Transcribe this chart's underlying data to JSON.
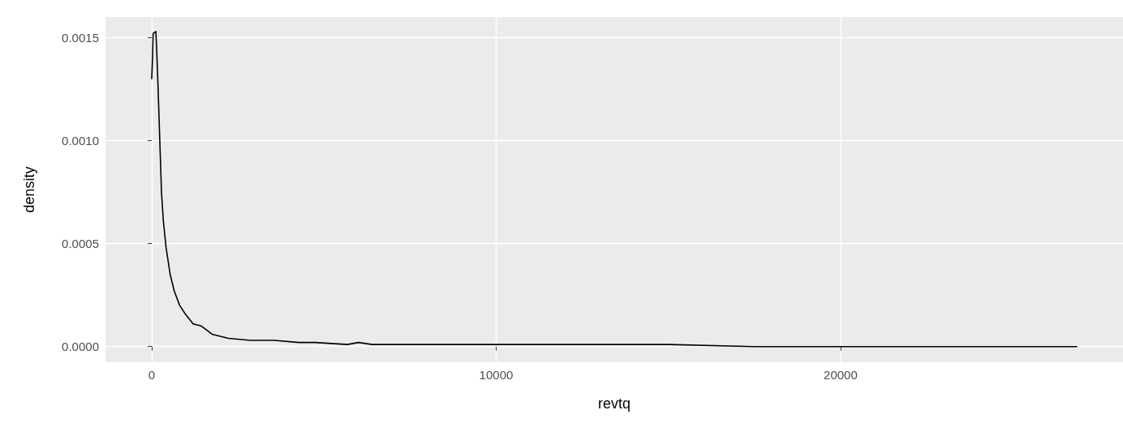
{
  "chart_data": {
    "type": "line",
    "xlabel": "revtq",
    "ylabel": "density",
    "x": [
      0,
      24,
      40,
      118,
      142,
      181,
      236,
      283,
      337,
      417,
      535,
      653,
      811,
      967,
      1203,
      1439,
      1753,
      2224,
      2861,
      3561,
      4269,
      4741,
      5684,
      6000,
      6400,
      8000,
      10000,
      12000,
      15000,
      17500,
      20000,
      22000,
      25000,
      26860
    ],
    "series": [
      {
        "color": "#000000",
        "values": [
          0.0013,
          0.00141,
          0.00152,
          0.00153,
          0.00145,
          0.00127,
          0.00099,
          0.00075,
          0.00061,
          0.00048,
          0.00035,
          0.00027,
          0.0002,
          0.00016,
          0.00011,
          0.0001,
          6e-05,
          4e-05,
          3e-05,
          3e-05,
          2e-05,
          2e-05,
          1e-05,
          2e-05,
          1e-05,
          1e-05,
          1e-05,
          1e-05,
          1e-05,
          0,
          0,
          0,
          0,
          0
        ]
      }
    ],
    "xlim": [
      -1343,
      28200
    ],
    "ylim": [
      -7.6e-05,
      0.0016
    ],
    "xticks": [
      0,
      10000,
      20000
    ],
    "yticks": [
      {
        "value": 0,
        "label": "0.0000"
      },
      {
        "value": 0.0005,
        "label": "0.0005"
      },
      {
        "value": 0.001,
        "label": "0.0010"
      },
      {
        "value": 0.0015,
        "label": "0.0015"
      }
    ],
    "grid": true,
    "marker": "none",
    "line_style": "solid"
  }
}
